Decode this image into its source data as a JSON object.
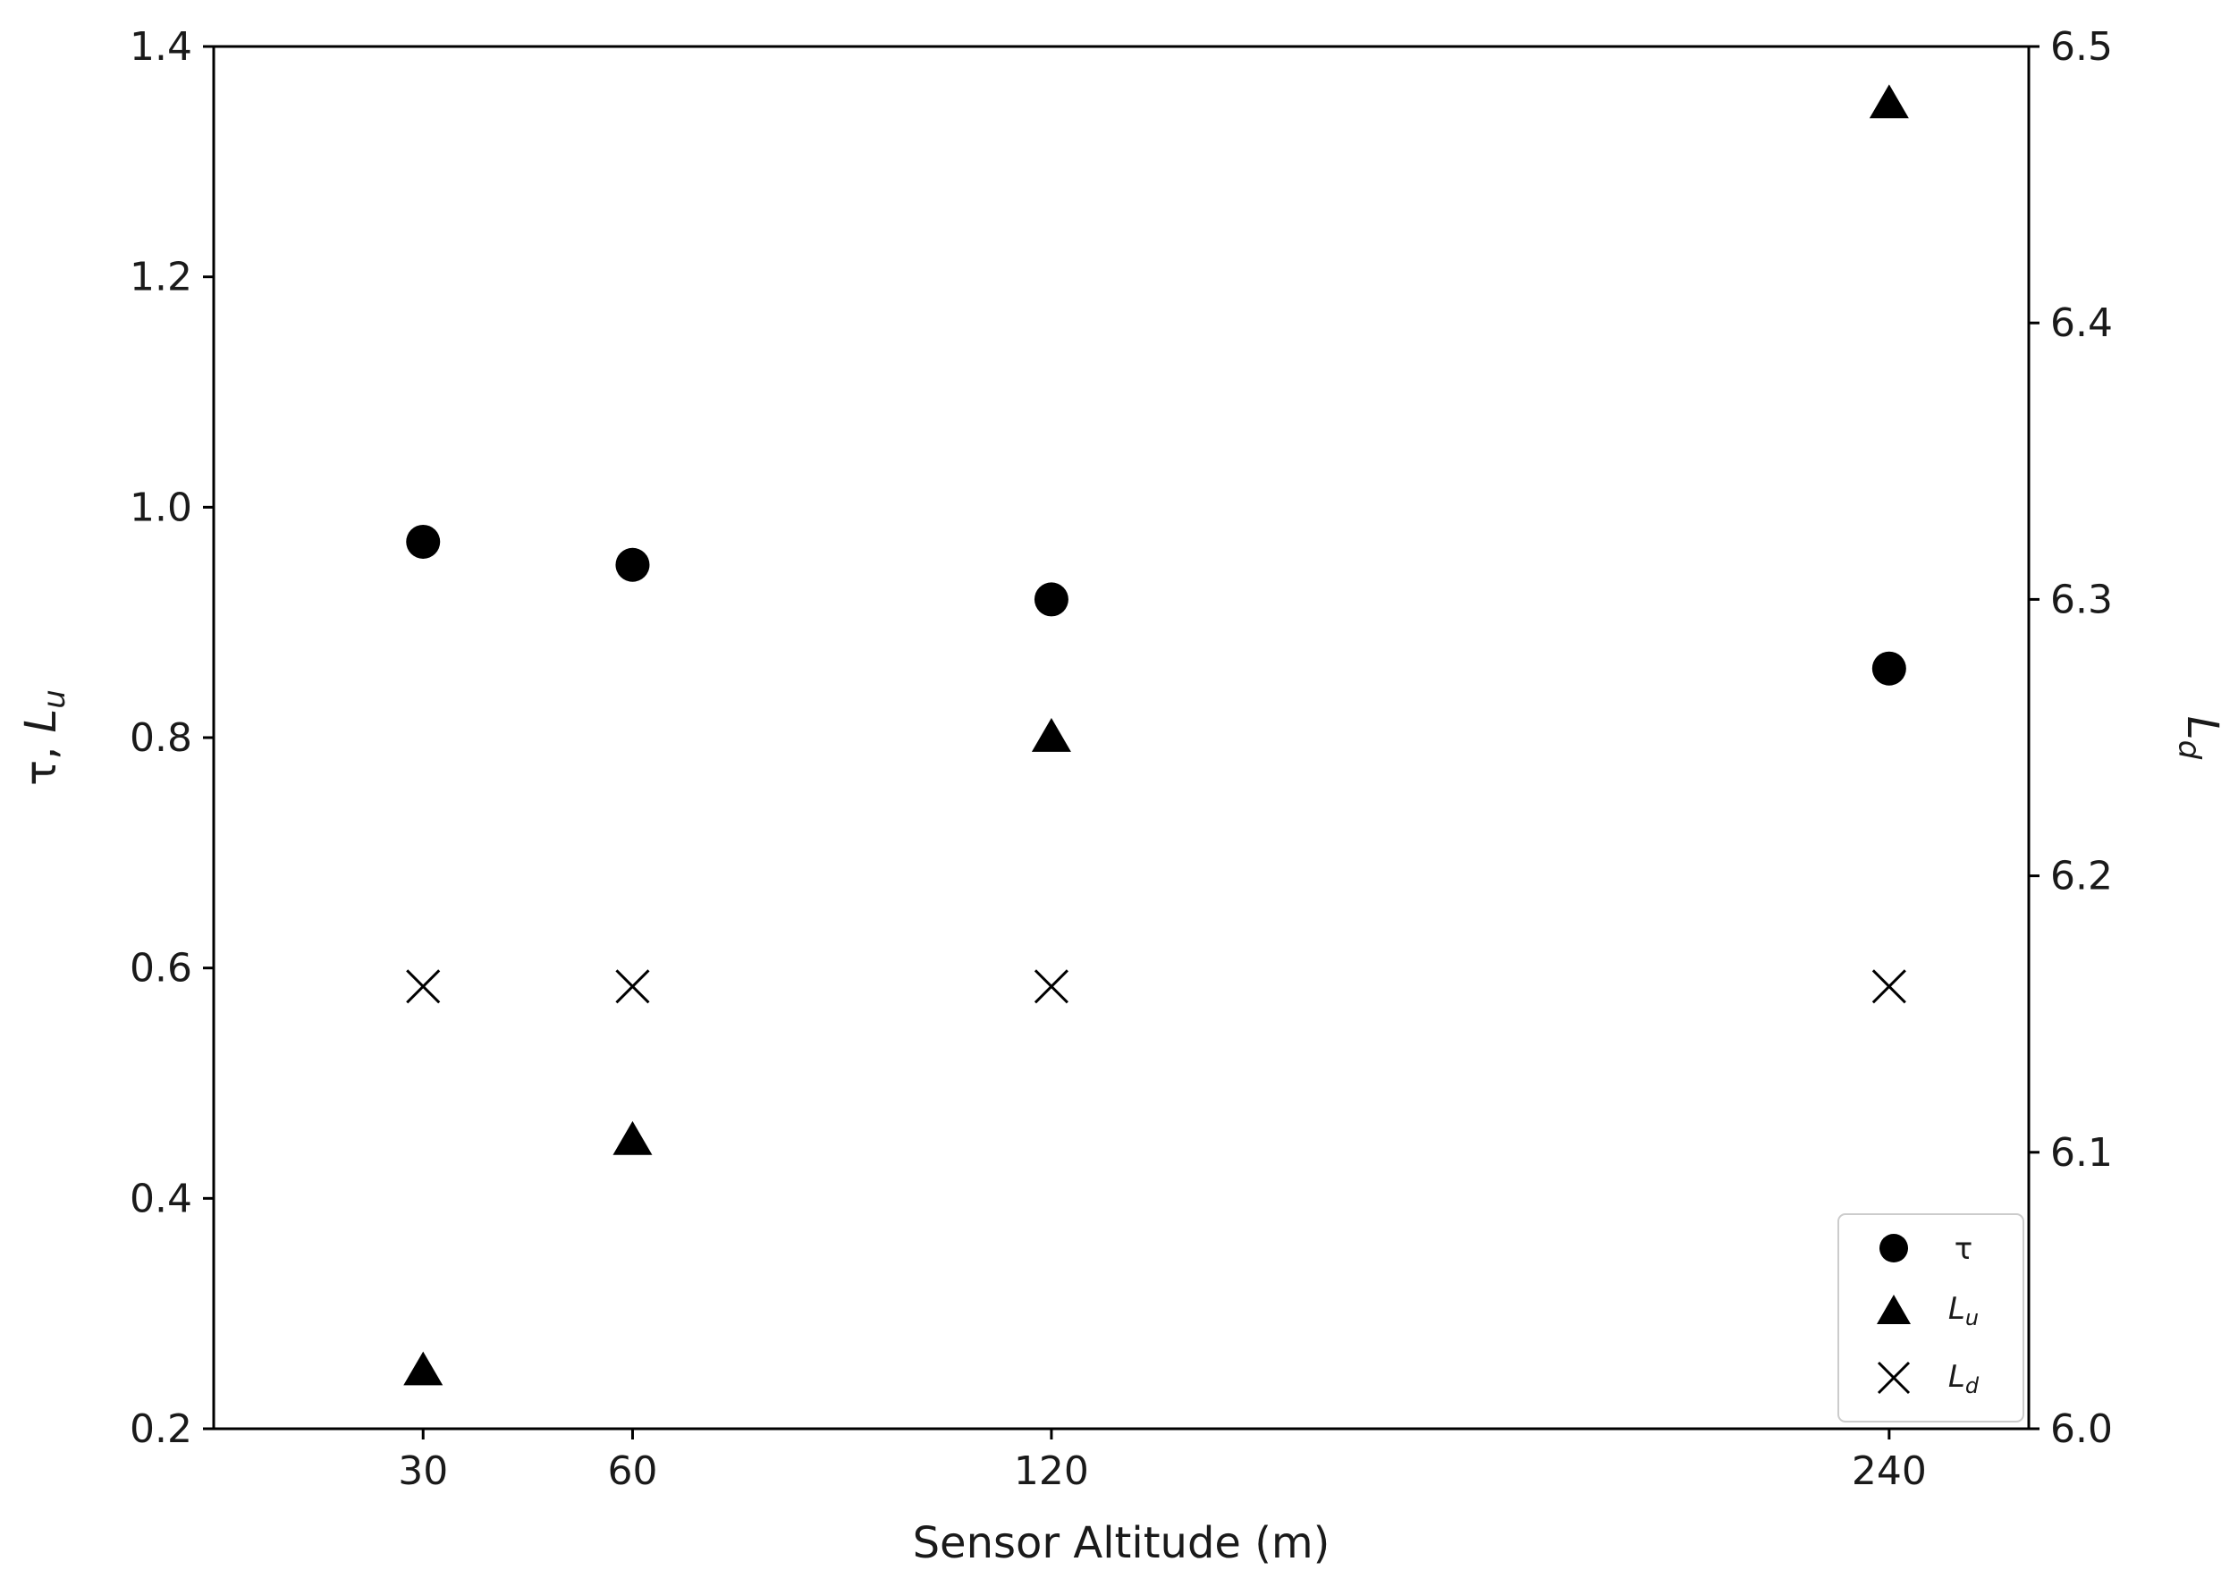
{
  "chart_data": {
    "type": "scatter",
    "xlabel": "Sensor Altitude (m)",
    "ylabel_left": "τ, Lu",
    "ylabel_right": "Ld",
    "x": [
      30,
      60,
      120,
      240
    ],
    "x_ticks": [
      30,
      60,
      120,
      240
    ],
    "xlim": [
      0,
      260
    ],
    "ylim_left": [
      0.2,
      1.4
    ],
    "ylim_right": [
      6.0,
      6.5
    ],
    "left_ticks": [
      0.2,
      0.4,
      0.6,
      0.8,
      1.0,
      1.2,
      1.4
    ],
    "right_ticks": [
      6.0,
      6.1,
      6.2,
      6.3,
      6.4,
      6.5
    ],
    "grid": false,
    "legend_position": "lower-right",
    "series": [
      {
        "name": "τ",
        "axis": "left",
        "marker": "circle",
        "color": "#000000",
        "values": [
          0.97,
          0.95,
          0.92,
          0.86
        ]
      },
      {
        "name": "Lu",
        "axis": "left",
        "marker": "triangle",
        "color": "#000000",
        "values": [
          0.25,
          0.45,
          0.8,
          1.35
        ]
      },
      {
        "name": "Ld",
        "axis": "right",
        "marker": "x",
        "color": "#000000",
        "values": [
          6.16,
          6.16,
          6.16,
          6.16
        ]
      }
    ]
  }
}
